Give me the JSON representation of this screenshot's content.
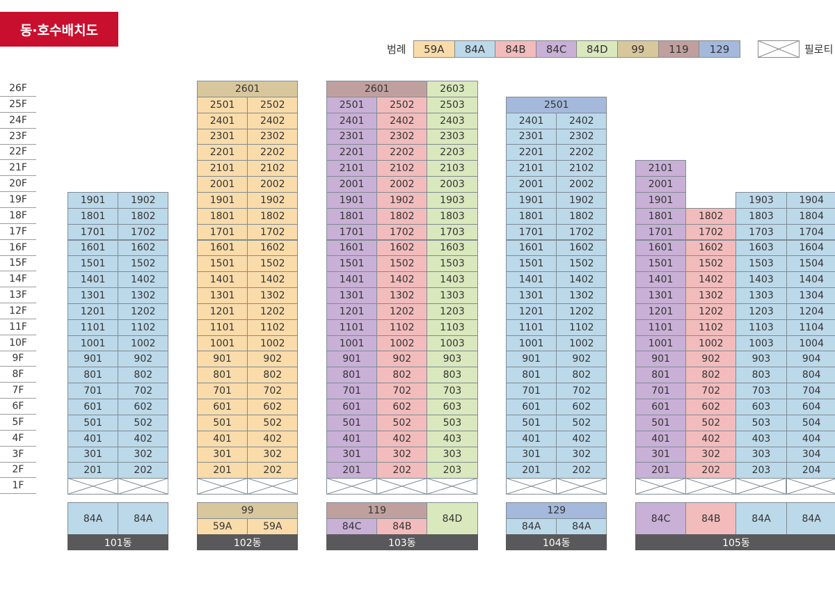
{
  "title": "동·호수배치도",
  "colors": {
    "title_bg": "#c8102e",
    "59A": "#f9dcaa",
    "84A": "#bcd9ea",
    "84B": "#f2bcbc",
    "84C": "#c9b0d6",
    "84D": "#dae8bd",
    "99": "#d8c79c",
    "119": "#c0a09e",
    "129": "#a4b9dc",
    "building_label_bg": "#59595b"
  },
  "legend": {
    "label": "범례",
    "items": [
      {
        "type": "59A",
        "label": "59A"
      },
      {
        "type": "84A",
        "label": "84A"
      },
      {
        "type": "84B",
        "label": "84B"
      },
      {
        "type": "84C",
        "label": "84C"
      },
      {
        "type": "84D",
        "label": "84D"
      },
      {
        "type": "99",
        "label": "99"
      },
      {
        "type": "119",
        "label": "119"
      },
      {
        "type": "129",
        "label": "129"
      }
    ],
    "pilotis_label": "필로티"
  },
  "floors": [
    "26F",
    "25F",
    "24F",
    "23F",
    "22F",
    "21F",
    "20F",
    "19F",
    "18F",
    "17F",
    "16F",
    "15F",
    "14F",
    "13F",
    "12F",
    "11F",
    "10F",
    "9F",
    "8F",
    "7F",
    "6F",
    "5F",
    "4F",
    "3F",
    "2F",
    "1F"
  ],
  "buildings": [
    {
      "name": "101동",
      "lines": [
        {
          "line": "01",
          "type": "84A",
          "top_floor": 19
        },
        {
          "line": "02",
          "type": "84A",
          "top_floor": 19
        }
      ],
      "penthouses": [],
      "type_labels": [
        {
          "label": "84A",
          "type": "84A",
          "span": 1,
          "rows": 2
        },
        {
          "label": "84A",
          "type": "84A",
          "span": 1,
          "rows": 2
        }
      ]
    },
    {
      "name": "102동",
      "lines": [
        {
          "line": "01",
          "type": "59A",
          "top_floor": 25
        },
        {
          "line": "02",
          "type": "59A",
          "top_floor": 25
        }
      ],
      "penthouses": [
        {
          "unit": "2601",
          "type": "99",
          "span": 2
        }
      ],
      "type_labels": [
        {
          "label": "99",
          "type": "99",
          "span": 2,
          "rows": 1
        },
        {
          "label": "59A",
          "type": "59A",
          "span": 1,
          "rows": 1
        },
        {
          "label": "59A",
          "type": "59A",
          "span": 1,
          "rows": 1
        }
      ]
    },
    {
      "name": "103동",
      "lines": [
        {
          "line": "01",
          "type": "84C",
          "top_floor": 25
        },
        {
          "line": "02",
          "type": "84B",
          "top_floor": 25
        },
        {
          "line": "03",
          "type": "84D",
          "top_floor": 26
        }
      ],
      "penthouses": [
        {
          "unit": "2601",
          "type": "119",
          "span": 2
        }
      ],
      "type_labels": [
        {
          "label": "119",
          "type": "119",
          "span": 2,
          "rows": 1
        },
        {
          "label": "84D",
          "type": "84D",
          "span": 1,
          "rows": 2
        },
        {
          "label": "84C",
          "type": "84C",
          "span": 1,
          "rows": 1
        },
        {
          "label": "84B",
          "type": "84B",
          "span": 1,
          "rows": 1
        }
      ]
    },
    {
      "name": "104동",
      "lines": [
        {
          "line": "01",
          "type": "84A",
          "top_floor": 24
        },
        {
          "line": "02",
          "type": "84A",
          "top_floor": 24
        }
      ],
      "penthouses": [
        {
          "unit": "2501",
          "type": "129",
          "span": 2
        }
      ],
      "type_labels": [
        {
          "label": "129",
          "type": "129",
          "span": 2,
          "rows": 1
        },
        {
          "label": "84A",
          "type": "84A",
          "span": 1,
          "rows": 1
        },
        {
          "label": "84A",
          "type": "84A",
          "span": 1,
          "rows": 1
        }
      ]
    },
    {
      "name": "105동",
      "lines": [
        {
          "line": "01",
          "type": "84C",
          "top_floor": 21
        },
        {
          "line": "02",
          "type": "84B",
          "top_floor": 18
        },
        {
          "line": "03",
          "type": "84A",
          "top_floor": 19
        },
        {
          "line": "04",
          "type": "84A",
          "top_floor": 19
        }
      ],
      "penthouses": [],
      "type_labels": [
        {
          "label": "84C",
          "type": "84C",
          "span": 1,
          "rows": 2
        },
        {
          "label": "84B",
          "type": "84B",
          "span": 1,
          "rows": 2
        },
        {
          "label": "84A",
          "type": "84A",
          "span": 1,
          "rows": 2
        },
        {
          "label": "84A",
          "type": "84A",
          "span": 1,
          "rows": 2
        }
      ]
    }
  ]
}
